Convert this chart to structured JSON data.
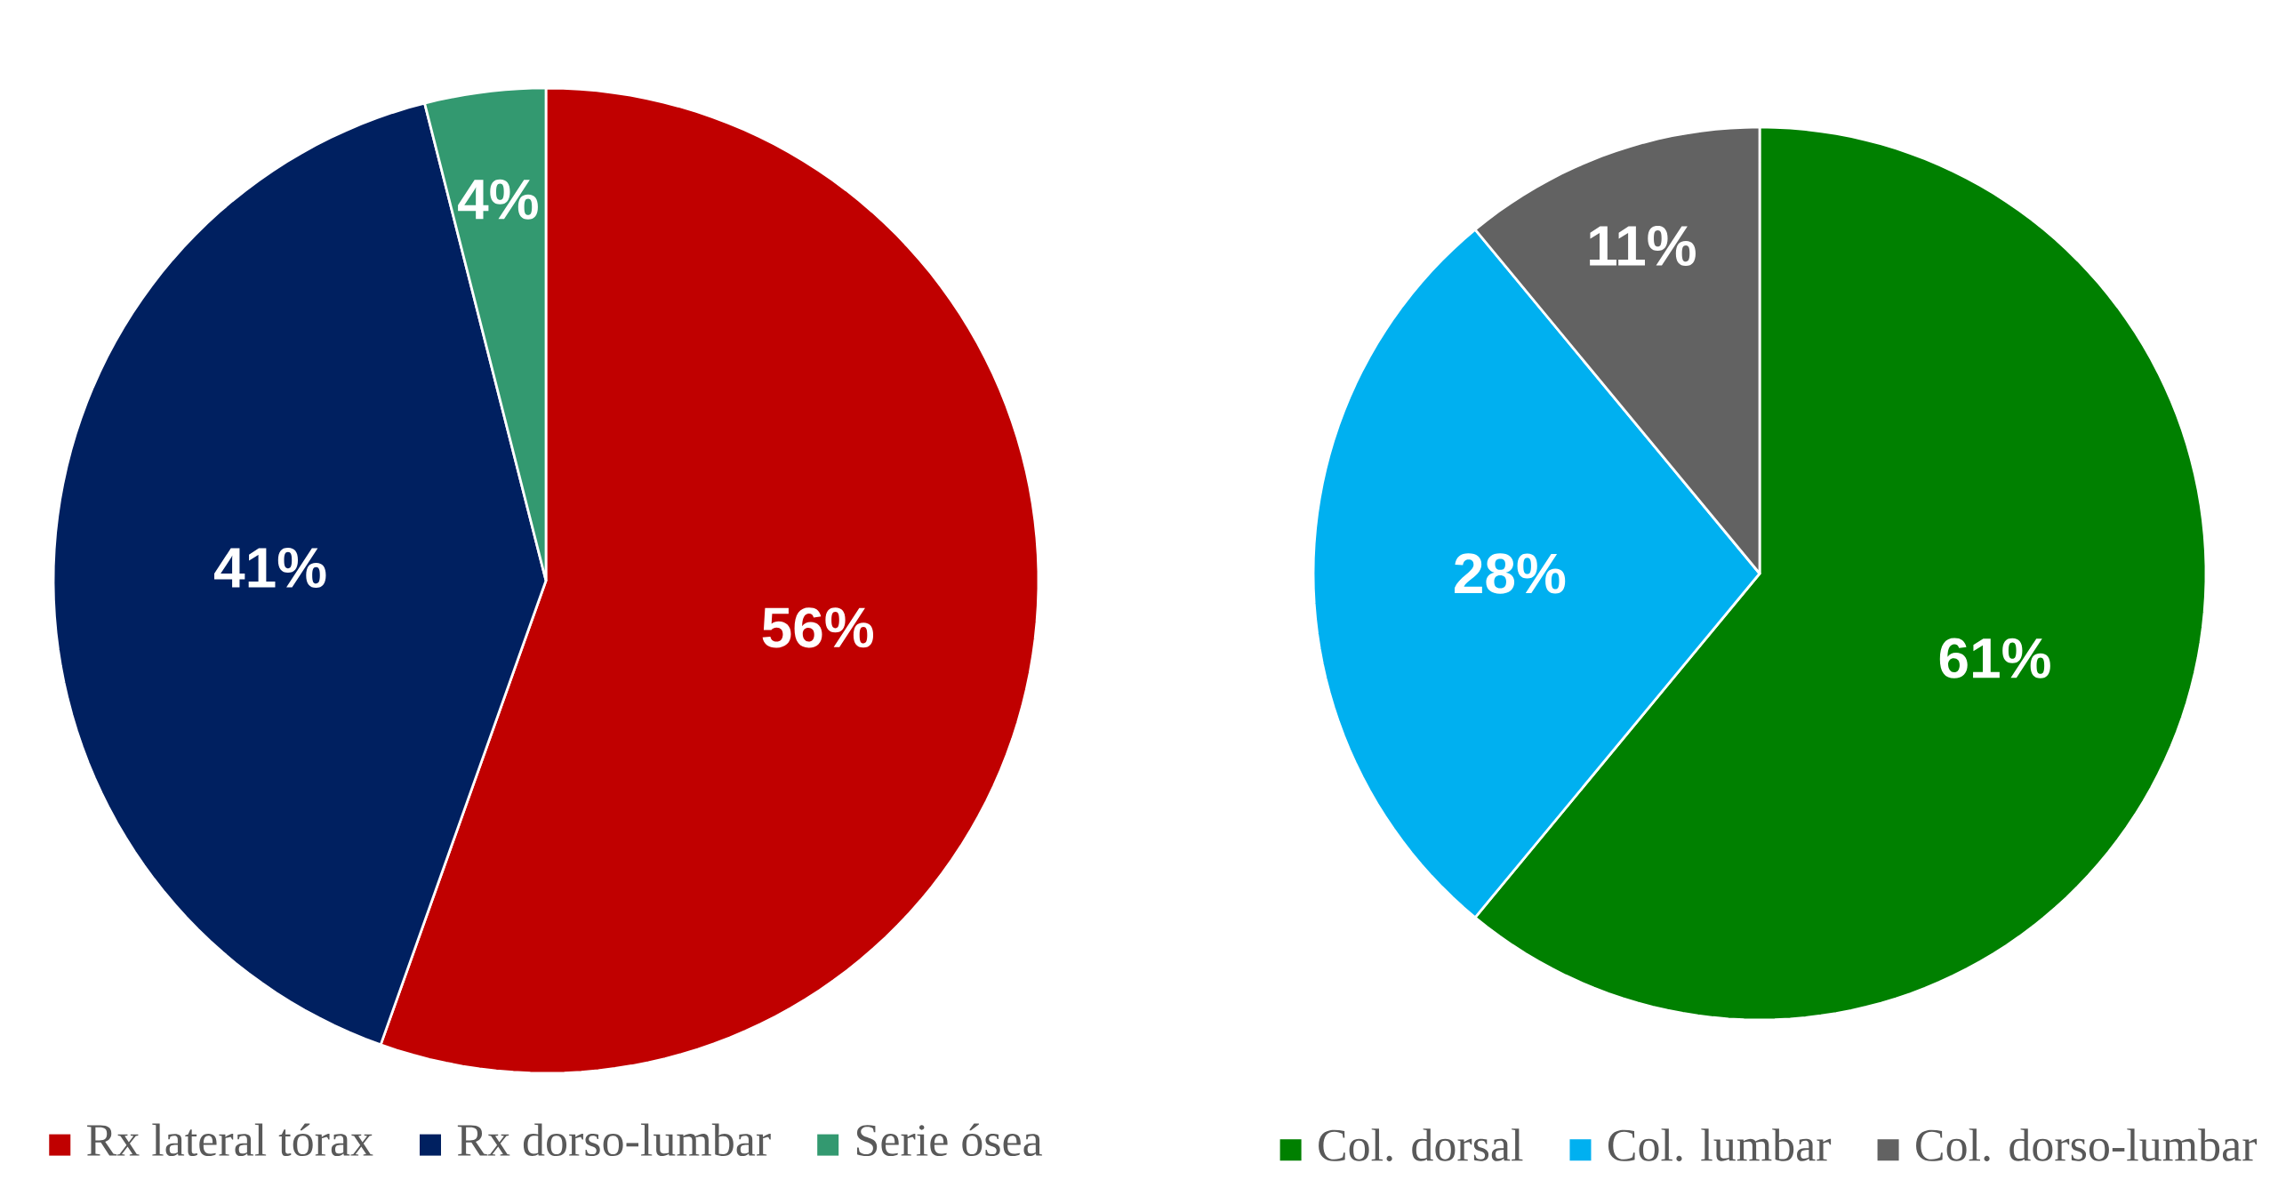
{
  "chart_data": [
    {
      "type": "pie",
      "categories": [
        "Rx lateral tórax",
        "Rx dorso-lumbar",
        "Serie ósea"
      ],
      "values": [
        56,
        41,
        4
      ],
      "colors": [
        "#c00000",
        "#002060",
        "#339970"
      ],
      "value_labels": [
        "56%",
        "41%",
        "4%"
      ],
      "legend": "bottom"
    },
    {
      "type": "pie",
      "categories": [
        "Col. dorsal",
        "Col. lumbar",
        "Col. dorso-lumbar"
      ],
      "values": [
        61,
        28,
        11
      ],
      "colors": [
        "#008000",
        "#00b0f0",
        "#626262"
      ],
      "value_labels": [
        "61%",
        "28%",
        "11%"
      ],
      "legend": "bottom"
    }
  ]
}
